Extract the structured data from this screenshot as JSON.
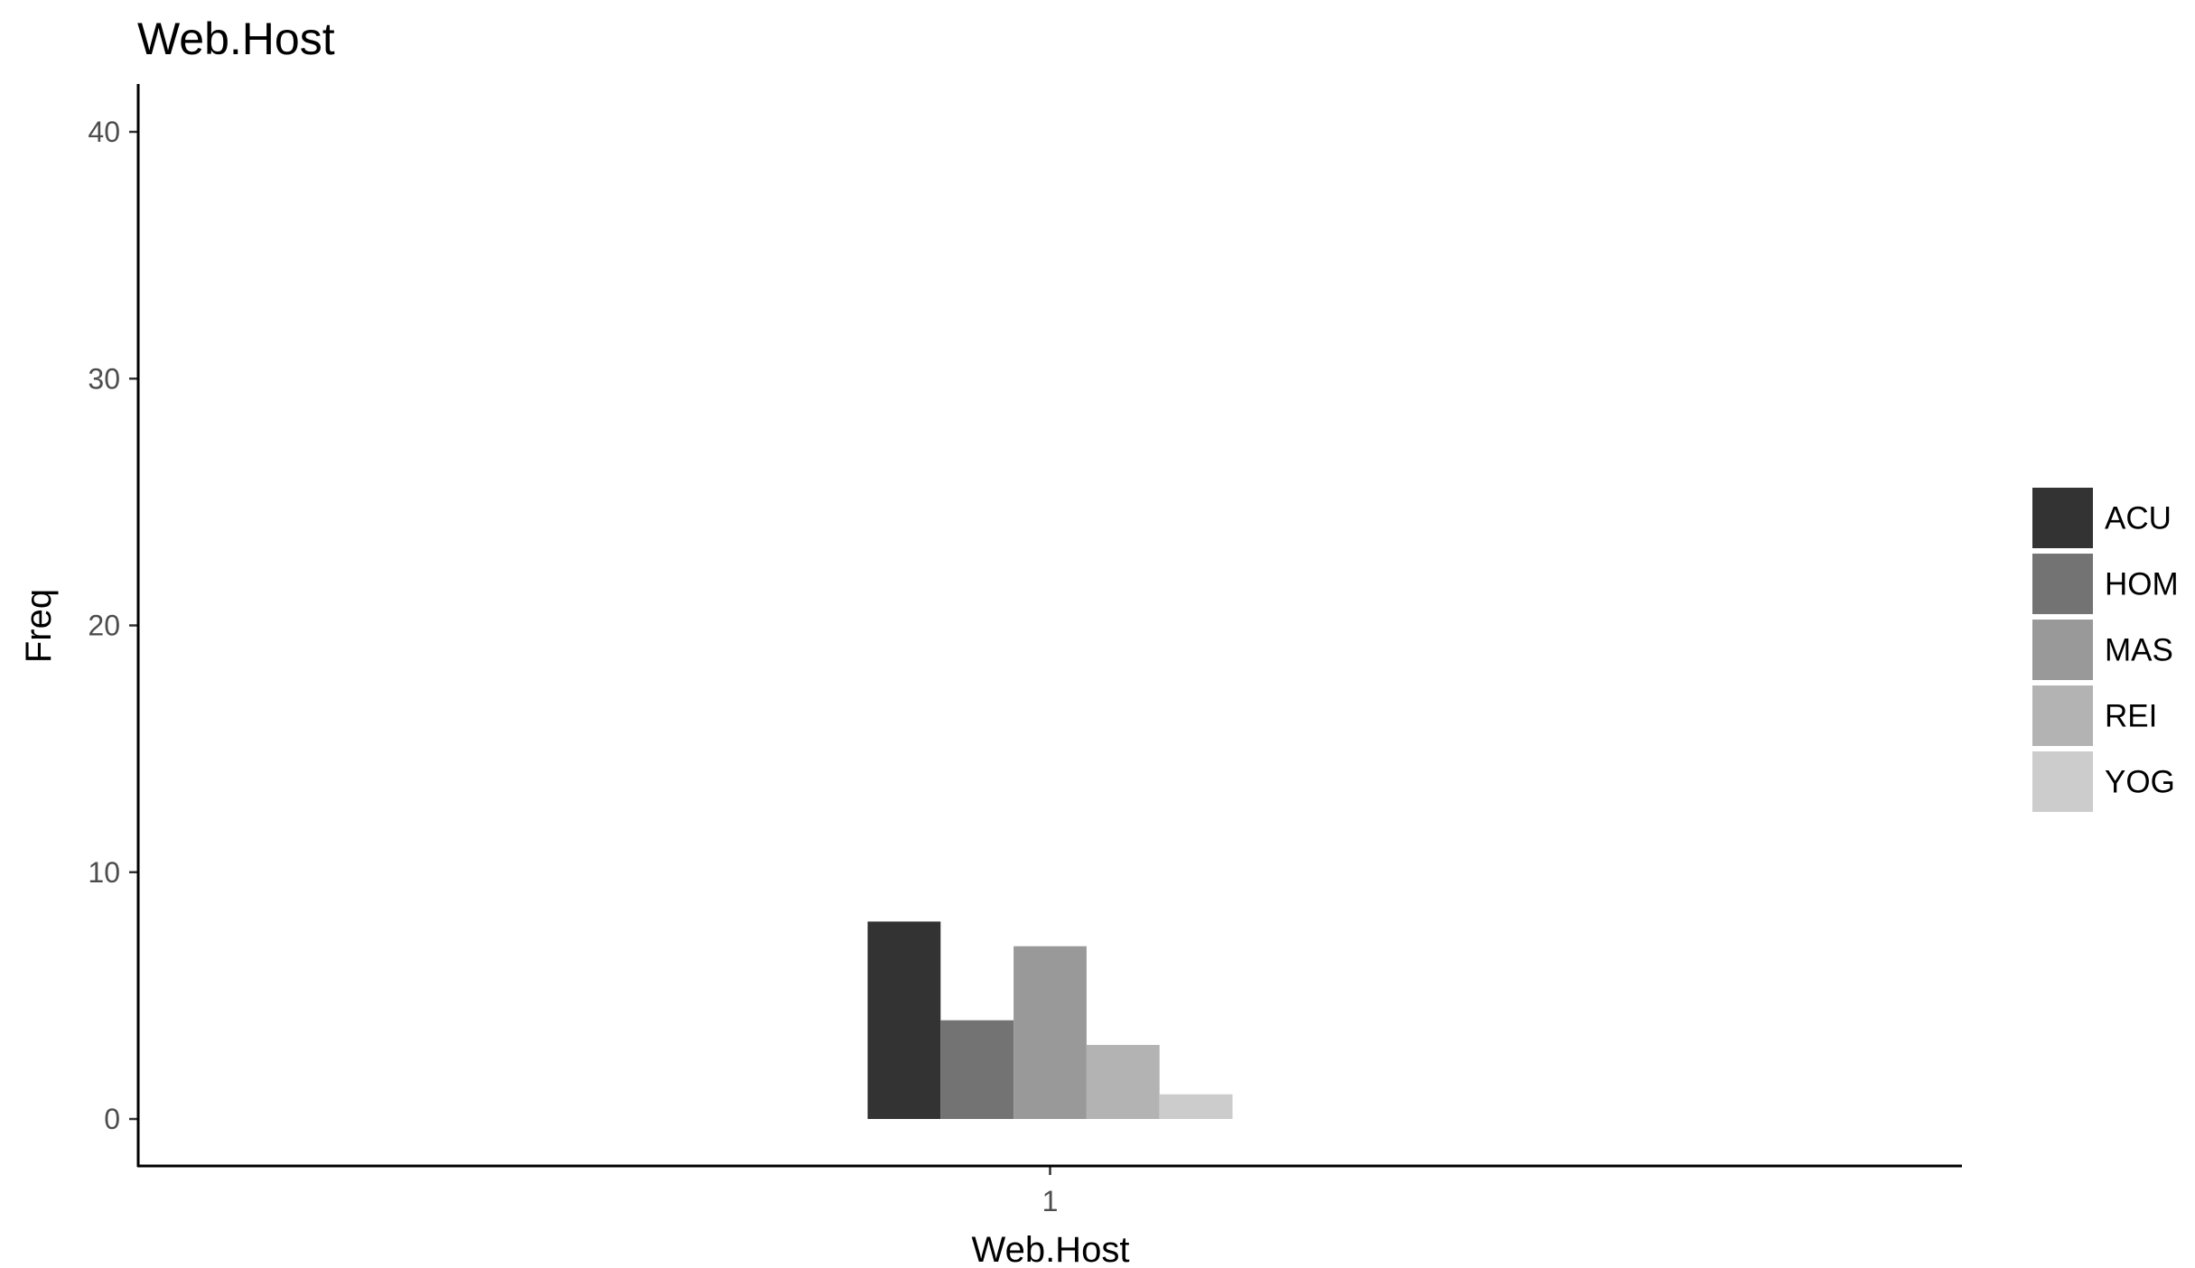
{
  "chart_data": {
    "type": "bar",
    "title": "Web.Host",
    "xlabel": "Web.Host",
    "ylabel": "Freq",
    "categories": [
      "1"
    ],
    "series": [
      {
        "name": "ACU",
        "values": [
          8
        ],
        "color": "#333333"
      },
      {
        "name": "HOM",
        "values": [
          4
        ],
        "color": "#737373"
      },
      {
        "name": "MAS",
        "values": [
          7
        ],
        "color": "#999999"
      },
      {
        "name": "REI",
        "values": [
          3
        ],
        "color": "#b3b3b3"
      },
      {
        "name": "YOG",
        "values": [
          1
        ],
        "color": "#cccccc"
      }
    ],
    "yticks": [
      0,
      10,
      20,
      30,
      40
    ],
    "ylim": [
      -2,
      42
    ],
    "grid": false,
    "legend_position": "right",
    "barmode": "dodge"
  }
}
